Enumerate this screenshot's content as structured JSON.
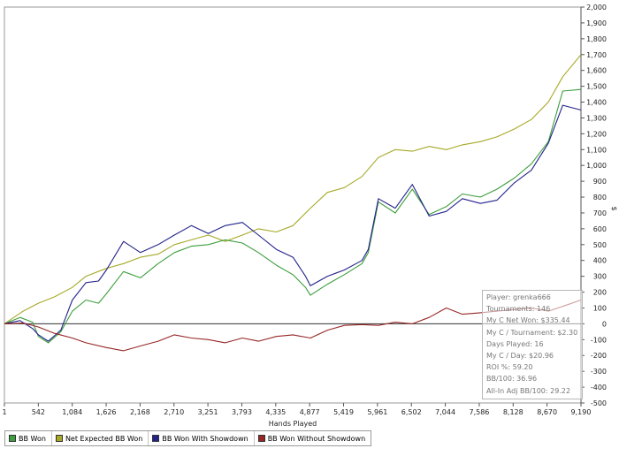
{
  "chart_data": {
    "type": "line",
    "title": "",
    "xlabel": "Hands Played",
    "ylabel": "$",
    "xlim": [
      1,
      9190
    ],
    "ylim": [
      -500,
      2000
    ],
    "x_ticks": [
      "1",
      "542",
      "1,084",
      "1,626",
      "2,168",
      "2,710",
      "3,251",
      "3,793",
      "4,335",
      "4,877",
      "5,419",
      "5,961",
      "6,502",
      "7,044",
      "7,586",
      "8,128",
      "8,670",
      "9,190"
    ],
    "y_ticks": [
      "-500",
      "-400",
      "-300",
      "-200",
      "-100",
      "0",
      "100",
      "200",
      "300",
      "400",
      "500",
      "600",
      "700",
      "800",
      "900",
      "1,000",
      "1,100",
      "1,200",
      "1,300",
      "1,400",
      "1,500",
      "1,600",
      "1,700",
      "1,800",
      "1,900",
      "2,000"
    ],
    "grid": false,
    "legend_position": "bottom",
    "series": [
      {
        "name": "Net Expected BB Won",
        "color": "#a6a826",
        "x": [
          1,
          300,
          542,
          800,
          1084,
          1300,
          1626,
          1900,
          2168,
          2450,
          2710,
          2980,
          3251,
          3520,
          3793,
          4050,
          4335,
          4600,
          4877,
          5150,
          5419,
          5700,
          5961,
          6230,
          6502,
          6770,
          7044,
          7300,
          7586,
          7850,
          8128,
          8400,
          8670,
          8900,
          9190
        ],
        "values": [
          0,
          80,
          130,
          170,
          230,
          300,
          350,
          380,
          420,
          440,
          500,
          530,
          560,
          520,
          560,
          600,
          580,
          620,
          730,
          830,
          860,
          930,
          1050,
          1100,
          1090,
          1120,
          1100,
          1130,
          1150,
          1180,
          1230,
          1290,
          1400,
          1560,
          1700
        ]
      },
      {
        "name": "BB Won",
        "color": "#3c9e3c",
        "x": [
          1,
          250,
          450,
          542,
          700,
          900,
          1084,
          1300,
          1500,
          1626,
          1900,
          2168,
          2450,
          2710,
          2980,
          3251,
          3520,
          3793,
          4050,
          4335,
          4600,
          4800,
          4877,
          5150,
          5419,
          5700,
          5800,
          5961,
          6230,
          6502,
          6770,
          7044,
          7300,
          7586,
          7850,
          8128,
          8400,
          8670,
          8900,
          9190
        ],
        "values": [
          0,
          40,
          10,
          -80,
          -120,
          -50,
          80,
          150,
          130,
          190,
          330,
          290,
          380,
          450,
          490,
          500,
          530,
          510,
          450,
          370,
          310,
          230,
          180,
          250,
          310,
          380,
          450,
          770,
          700,
          850,
          690,
          740,
          820,
          800,
          850,
          920,
          1010,
          1150,
          1470,
          1480
        ]
      },
      {
        "name": "BB Won With Showdown",
        "color": "#22228a",
        "x": [
          1,
          250,
          450,
          542,
          700,
          900,
          1084,
          1300,
          1500,
          1626,
          1900,
          2168,
          2450,
          2710,
          2980,
          3251,
          3520,
          3793,
          4050,
          4335,
          4600,
          4800,
          4877,
          5150,
          5419,
          5700,
          5800,
          5961,
          6230,
          6502,
          6770,
          7044,
          7300,
          7586,
          7850,
          8128,
          8400,
          8670,
          8900,
          9190
        ],
        "values": [
          0,
          20,
          -30,
          -70,
          -110,
          -40,
          150,
          260,
          270,
          340,
          520,
          450,
          500,
          560,
          620,
          570,
          620,
          640,
          560,
          470,
          420,
          300,
          240,
          300,
          340,
          400,
          470,
          790,
          730,
          880,
          680,
          710,
          790,
          760,
          780,
          890,
          970,
          1140,
          1380,
          1350
        ]
      },
      {
        "name": "BB Won Without Showdown",
        "color": "#962626",
        "x": [
          1,
          300,
          542,
          800,
          1084,
          1300,
          1626,
          1900,
          2168,
          2450,
          2710,
          2980,
          3251,
          3520,
          3793,
          4050,
          4335,
          4600,
          4877,
          5150,
          5419,
          5700,
          5961,
          6230,
          6502,
          6770,
          7044,
          7300,
          7586,
          7850,
          8128,
          8400,
          8670,
          8900,
          9190
        ],
        "values": [
          0,
          5,
          -20,
          -60,
          -90,
          -120,
          -150,
          -170,
          -140,
          -110,
          -70,
          -90,
          -100,
          -120,
          -90,
          -110,
          -80,
          -70,
          -90,
          -40,
          -10,
          -5,
          -10,
          10,
          0,
          40,
          100,
          60,
          70,
          80,
          90,
          100,
          80,
          110,
          150
        ]
      }
    ]
  },
  "stats": [
    "Player: grenka666",
    "Tournaments: 146",
    "My C Net Won: $335.44",
    "My C / Tournament: $2.30",
    "Days Played: 16",
    "My C / Day: $20.96",
    "ROI %: 59.20",
    "BB/100: 36.96",
    "All-In Adj BB/100: 29.22"
  ],
  "legend": [
    {
      "label": "BB Won",
      "color": "#3c9e3c"
    },
    {
      "label": "Net Expected BB Won",
      "color": "#a6a826"
    },
    {
      "label": "BB Won With Showdown",
      "color": "#22228a"
    },
    {
      "label": "BB Won Without Showdown",
      "color": "#962626"
    }
  ]
}
